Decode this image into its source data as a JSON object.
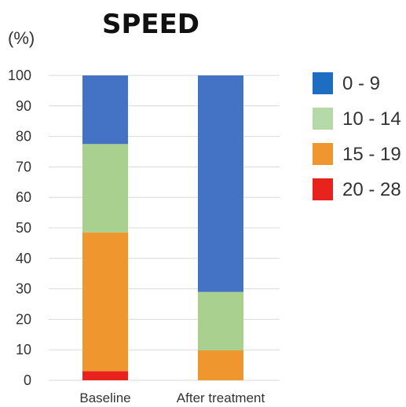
{
  "chart_data": {
    "type": "bar",
    "stacked": true,
    "title": "SPEED",
    "ylabel": "(%)",
    "xlabel": "",
    "ylim": [
      0,
      100
    ],
    "yticks": [
      0,
      10,
      20,
      30,
      40,
      50,
      60,
      70,
      80,
      90,
      100
    ],
    "grid": true,
    "legend_position": "right",
    "categories": [
      "Baseline",
      "After treatment"
    ],
    "series": [
      {
        "name": "20 - 28",
        "color": "#e8231e",
        "values": [
          3,
          0
        ]
      },
      {
        "name": "15 - 19",
        "color": "#f0962e",
        "values": [
          45.5,
          9.8
        ]
      },
      {
        "name": "10 - 14",
        "color": "#a9d08e",
        "values": [
          29,
          19.2
        ]
      },
      {
        "name": "0 - 9",
        "color": "#4472c4",
        "values": [
          22.5,
          71
        ]
      }
    ],
    "legend": [
      {
        "label": "0 - 9",
        "color": "#1f6dc2"
      },
      {
        "label": "10 - 14",
        "color": "#b5d9a8"
      },
      {
        "label": "15 - 19",
        "color": "#f0962e"
      },
      {
        "label": "20 - 28",
        "color": "#e8231e"
      }
    ]
  }
}
